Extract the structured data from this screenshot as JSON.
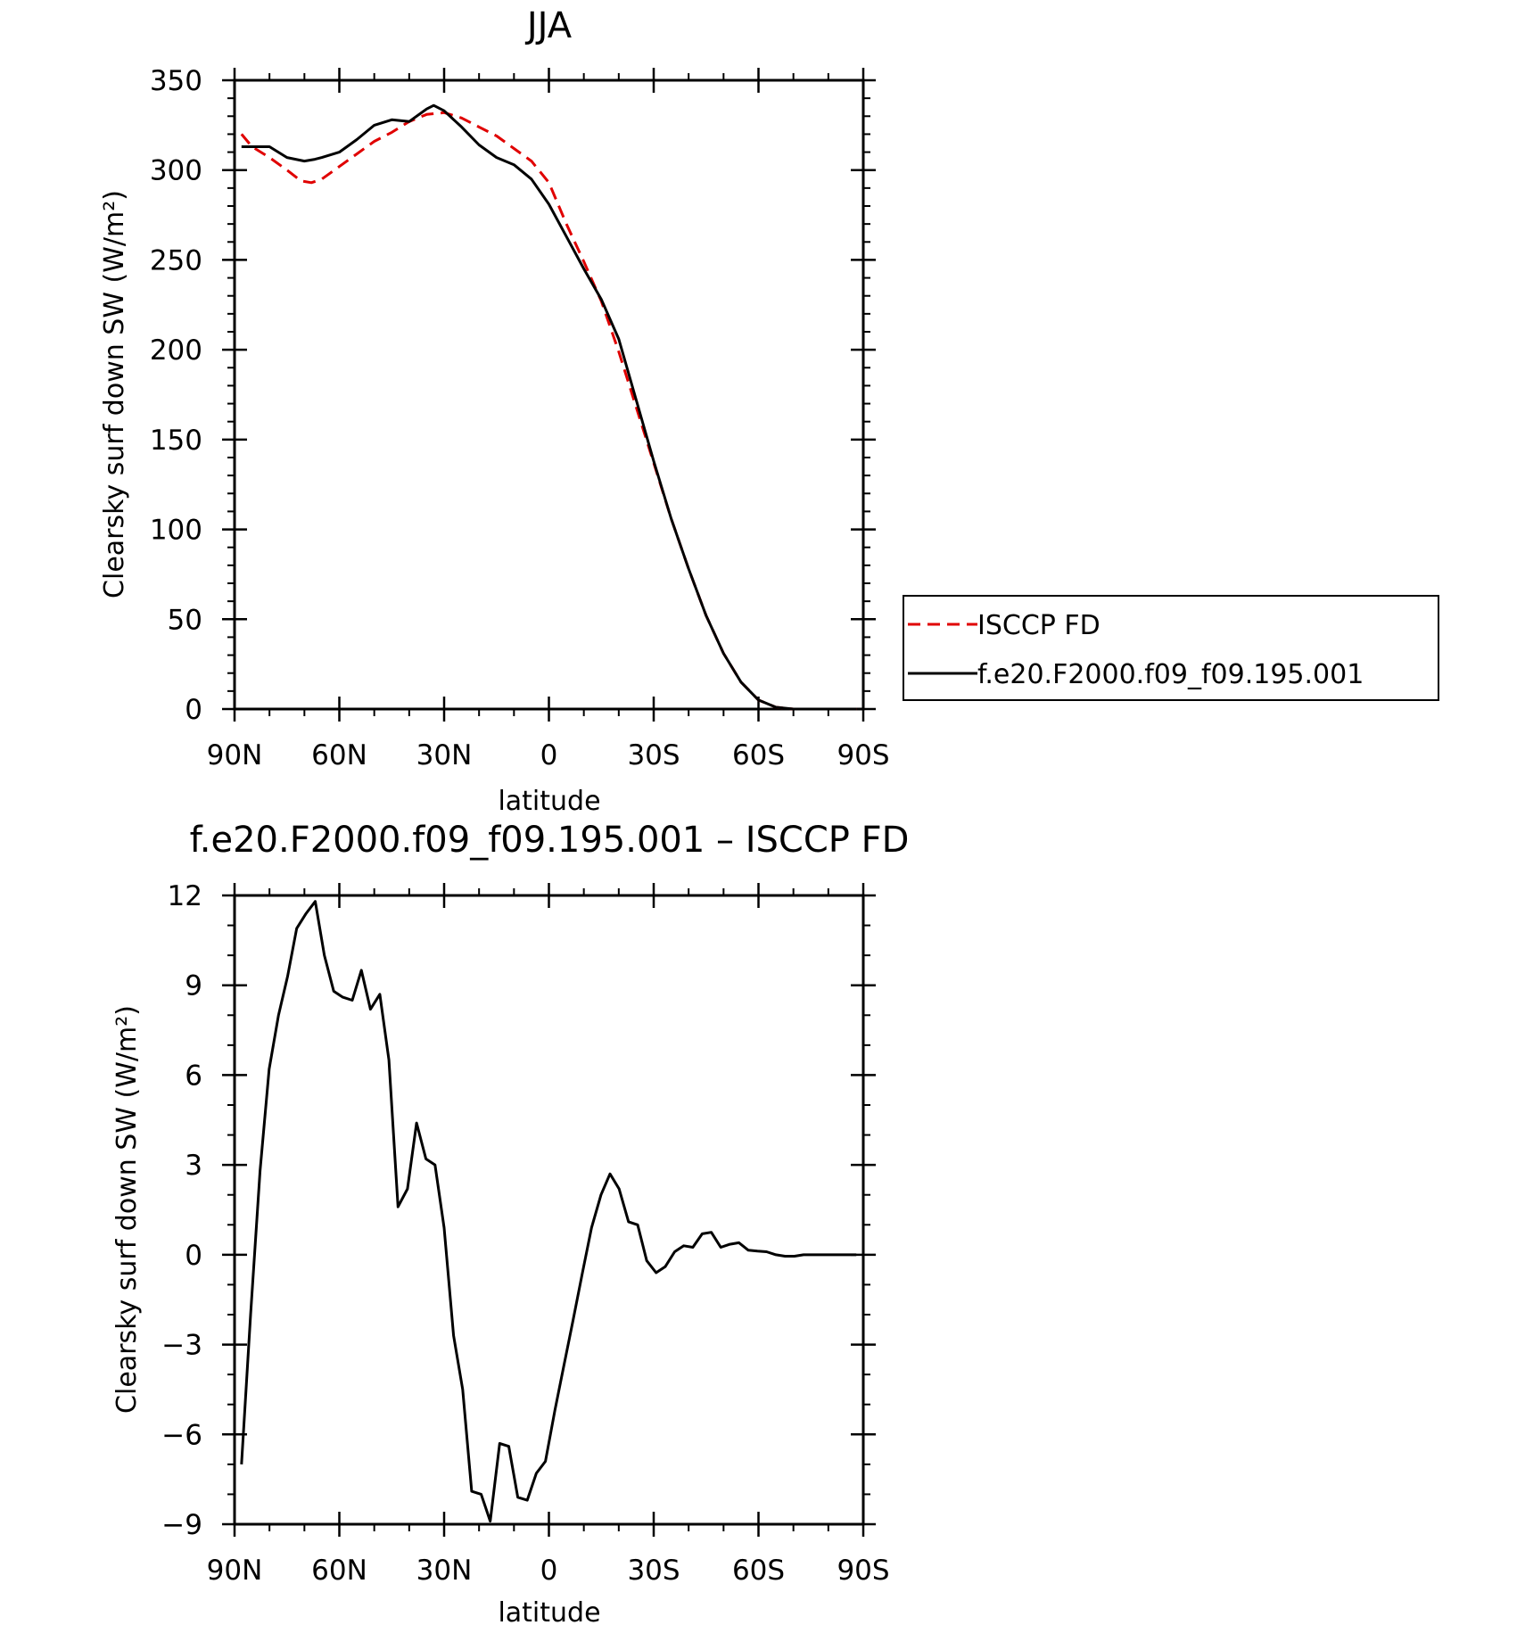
{
  "chart_data": [
    {
      "type": "line",
      "title": "JJA",
      "xlabel": "latitude",
      "ylabel": "Clearsky surf down SW (W/m²)",
      "xlim": [
        90,
        -90
      ],
      "ylim": [
        0,
        350
      ],
      "x_ticks": [
        {
          "value": 90,
          "label": "90N"
        },
        {
          "value": 60,
          "label": "60N"
        },
        {
          "value": 30,
          "label": "30N"
        },
        {
          "value": 0,
          "label": "0"
        },
        {
          "value": -30,
          "label": "30S"
        },
        {
          "value": -60,
          "label": "60S"
        },
        {
          "value": -90,
          "label": "90S"
        }
      ],
      "y_ticks": [
        {
          "value": 0,
          "label": "0"
        },
        {
          "value": 50,
          "label": "50"
        },
        {
          "value": 100,
          "label": "100"
        },
        {
          "value": 150,
          "label": "150"
        },
        {
          "value": 200,
          "label": "200"
        },
        {
          "value": 250,
          "label": "250"
        },
        {
          "value": 300,
          "label": "300"
        },
        {
          "value": 350,
          "label": "350"
        }
      ],
      "grid": false,
      "legend": {
        "placement": "right"
      },
      "series": [
        {
          "name": "ISCCP FD",
          "color": "#e00000",
          "dash": "dashed",
          "x": [
            88,
            85,
            80,
            75,
            71,
            68,
            65,
            60,
            55,
            50,
            45,
            40,
            35,
            30,
            25,
            20,
            15,
            10,
            5,
            0,
            -5,
            -10,
            -15,
            -20,
            -25,
            -30,
            -35,
            -40,
            -45,
            -50,
            -55,
            -60,
            -65,
            -70,
            -75,
            -80,
            -85,
            -88
          ],
          "y": [
            320,
            313,
            307,
            300,
            294,
            293,
            295,
            302,
            309,
            316,
            321,
            327,
            331,
            332,
            329,
            324,
            319,
            312,
            305,
            293,
            270,
            249,
            227,
            199,
            168,
            137,
            106,
            78,
            52,
            31,
            15,
            5,
            1,
            0,
            0,
            0,
            0,
            0
          ]
        },
        {
          "name": "f.e20.F2000.f09_f09.195.001",
          "color": "#000000",
          "dash": "solid",
          "x": [
            88,
            85,
            80,
            75,
            70,
            67,
            65,
            60,
            55,
            50,
            45,
            40,
            35,
            33,
            30,
            25,
            20,
            15,
            10,
            5,
            0,
            -5,
            -10,
            -15,
            -20,
            -25,
            -30,
            -35,
            -40,
            -45,
            -50,
            -55,
            -60,
            -65,
            -70,
            -75,
            -80,
            -85,
            -88
          ],
          "y": [
            313,
            313,
            313,
            307,
            305,
            306,
            307,
            310,
            317,
            325,
            328,
            327,
            334,
            336,
            333,
            324,
            314,
            307,
            303,
            295,
            281,
            263,
            245,
            228,
            206,
            172,
            138,
            106,
            78,
            52,
            31,
            15,
            5,
            1,
            0,
            0,
            0,
            0,
            0
          ]
        }
      ]
    },
    {
      "type": "line",
      "title": "f.e20.F2000.f09_f09.195.001 – ISCCP FD",
      "xlabel": "latitude",
      "ylabel": "Clearsky surf down SW (W/m²)",
      "xlim": [
        90,
        -90
      ],
      "ylim": [
        -9,
        12
      ],
      "x_ticks": [
        {
          "value": 90,
          "label": "90N"
        },
        {
          "value": 60,
          "label": "60N"
        },
        {
          "value": 30,
          "label": "30N"
        },
        {
          "value": 0,
          "label": "0"
        },
        {
          "value": -30,
          "label": "30S"
        },
        {
          "value": -60,
          "label": "60S"
        },
        {
          "value": -90,
          "label": "90S"
        }
      ],
      "y_ticks": [
        {
          "value": -9,
          "label": "−9"
        },
        {
          "value": -6,
          "label": "−6"
        },
        {
          "value": -3,
          "label": "−3"
        },
        {
          "value": 0,
          "label": "0"
        },
        {
          "value": 3,
          "label": "3"
        },
        {
          "value": 6,
          "label": "6"
        },
        {
          "value": 9,
          "label": "9"
        },
        {
          "value": 12,
          "label": "12"
        }
      ],
      "grid": false,
      "series": [
        {
          "color": "#000000",
          "dash": "solid",
          "x": [
            88.0,
            85.4,
            82.7,
            80.1,
            77.4,
            74.8,
            72.2,
            69.5,
            66.9,
            64.3,
            61.6,
            59.0,
            56.3,
            53.7,
            51.1,
            48.4,
            45.8,
            43.2,
            40.5,
            37.9,
            35.2,
            32.6,
            30.0,
            27.3,
            24.7,
            22.1,
            19.4,
            16.8,
            14.1,
            11.5,
            8.9,
            6.2,
            3.6,
            1.0,
            -1.7,
            -4.3,
            -6.9,
            -9.6,
            -12.2,
            -14.9,
            -17.5,
            -20.1,
            -22.8,
            -25.4,
            -28.0,
            -30.7,
            -33.3,
            -36.0,
            -38.6,
            -41.2,
            -43.9,
            -46.5,
            -49.2,
            -51.8,
            -54.4,
            -57.1,
            -59.7,
            -62.3,
            -65.0,
            -67.6,
            -70.3,
            -72.9,
            -75.5,
            -78.2,
            -80.8,
            -83.4,
            -86.1,
            -88.0
          ],
          "y": [
            -7.0,
            -2.0,
            2.8,
            6.2,
            8.0,
            9.3,
            10.9,
            11.4,
            11.8,
            10.0,
            8.8,
            8.6,
            8.5,
            9.5,
            8.2,
            8.7,
            6.5,
            1.6,
            2.2,
            4.4,
            3.2,
            3.0,
            0.9,
            -2.7,
            -4.5,
            -7.9,
            -8.0,
            -8.9,
            -6.3,
            -6.4,
            -8.1,
            -8.2,
            -7.3,
            -6.9,
            -5.2,
            -3.7,
            -2.2,
            -0.6,
            0.9,
            2.0,
            2.7,
            2.2,
            1.1,
            1.0,
            -0.2,
            -0.6,
            -0.4,
            0.1,
            0.3,
            0.25,
            0.7,
            0.75,
            0.25,
            0.35,
            0.4,
            0.15,
            0.12,
            0.1,
            0.0,
            -0.05,
            -0.05,
            0.0,
            0.0,
            0.0,
            0.0,
            0.0,
            0.0,
            0.0
          ]
        }
      ]
    }
  ]
}
